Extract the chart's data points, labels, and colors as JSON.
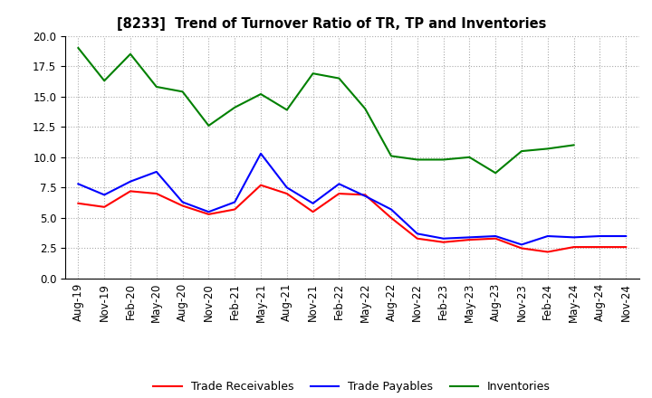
{
  "title": "[8233]  Trend of Turnover Ratio of TR, TP and Inventories",
  "x_labels": [
    "Aug-19",
    "Nov-19",
    "Feb-20",
    "May-20",
    "Aug-20",
    "Nov-20",
    "Feb-21",
    "May-21",
    "Aug-21",
    "Nov-21",
    "Feb-22",
    "May-22",
    "Aug-22",
    "Nov-22",
    "Feb-23",
    "May-23",
    "Aug-23",
    "Nov-23",
    "Feb-24",
    "May-24",
    "Aug-24",
    "Nov-24"
  ],
  "trade_receivables": [
    6.2,
    5.9,
    7.2,
    7.0,
    6.0,
    5.3,
    5.7,
    7.7,
    7.0,
    5.5,
    7.0,
    6.9,
    5.0,
    3.3,
    3.0,
    3.2,
    3.3,
    2.5,
    2.2,
    2.6,
    2.6,
    2.6
  ],
  "trade_payables": [
    7.8,
    6.9,
    8.0,
    8.8,
    6.3,
    5.5,
    6.3,
    10.3,
    7.5,
    6.2,
    7.8,
    6.8,
    5.7,
    3.7,
    3.3,
    3.4,
    3.5,
    2.8,
    3.5,
    3.4,
    3.5,
    3.5
  ],
  "inventories": [
    19.0,
    16.3,
    18.5,
    15.8,
    15.4,
    12.6,
    14.1,
    15.2,
    13.9,
    16.9,
    16.5,
    14.0,
    10.1,
    9.8,
    9.8,
    10.0,
    8.7,
    10.5,
    10.7,
    11.0,
    null,
    null
  ],
  "ylim": [
    0.0,
    20.0
  ],
  "yticks": [
    0.0,
    2.5,
    5.0,
    7.5,
    10.0,
    12.5,
    15.0,
    17.5,
    20.0
  ],
  "color_tr": "#ff0000",
  "color_tp": "#0000ff",
  "color_inv": "#008000",
  "legend_labels": [
    "Trade Receivables",
    "Trade Payables",
    "Inventories"
  ],
  "background_color": "#ffffff",
  "grid_color": "#aaaaaa"
}
